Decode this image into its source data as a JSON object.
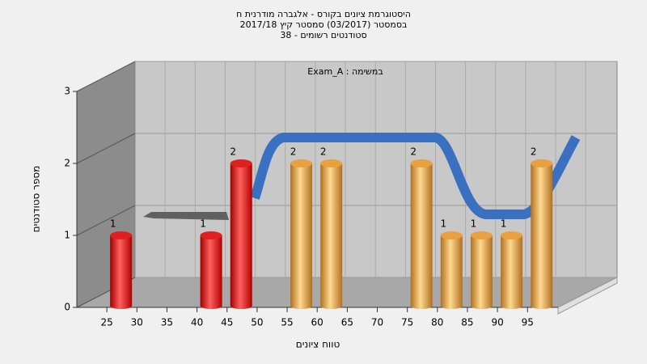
{
  "chart_data": {
    "type": "bar",
    "title": [
      "היסטוגרמת ציונים בקורס - אלגברה מודרנית ח",
      "בסמסטר  (03/2017)  סמסטר קיץ 2017/18",
      "38 - סטודנטים רשומים"
    ],
    "annotation": "Exam_A : במשימה",
    "x_label": "טווח ציונים",
    "y_label": "מספר סטודנטים",
    "categories": [
      25,
      30,
      35,
      40,
      45,
      50,
      55,
      60,
      65,
      70,
      75,
      80,
      85,
      90,
      95
    ],
    "values": [
      1,
      null,
      null,
      1,
      2,
      null,
      2,
      2,
      null,
      null,
      2,
      1,
      1,
      1,
      2
    ],
    "colors": [
      "#e02020",
      null,
      null,
      "#e02020",
      "#e02020",
      null,
      "#e8a040",
      "#e8a040",
      null,
      null,
      "#e8a040",
      "#e8a040",
      "#e8a040",
      "#e8a040",
      "#e8a040"
    ],
    "ylim": [
      0,
      3
    ],
    "yticks": [
      0,
      1,
      2,
      3
    ],
    "grid": true
  }
}
